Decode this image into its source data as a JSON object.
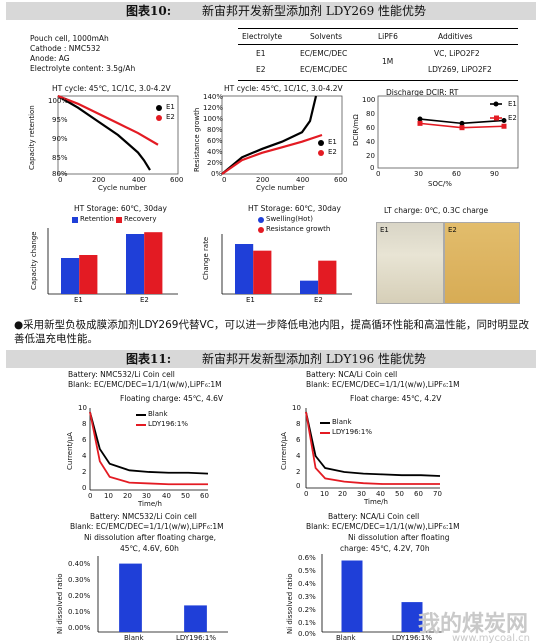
{
  "fig10": {
    "label": "图表10:",
    "title": "新宙邦开发新型添加剂 LDY269 性能优势",
    "cell_info": [
      "Pouch cell, 1000mAh",
      "Cathode : NMC532",
      "Anode: AG",
      "Electrolyte content: 3.5g/Ah"
    ],
    "table": {
      "headers": [
        "Electrolyte",
        "Solvents",
        "LiPF6",
        "Additives"
      ],
      "rows": [
        [
          "E1",
          "EC/EMC/DEC",
          "1M",
          "VC, LiPO2F2"
        ],
        [
          "E2",
          "EC/EMC/DEC",
          "",
          "LDY269, LiPO2F2"
        ]
      ]
    },
    "c1": {
      "title": "HT cycle: 45℃, 1C/1C, 3.0-4.2V",
      "ylabel": "Capacity retention",
      "xlabel": "Cycle number",
      "yticks": [
        "100%",
        "95%",
        "90%",
        "85%",
        "80%"
      ],
      "xticks": [
        "0",
        "200",
        "400",
        "600"
      ],
      "legend": [
        "E1",
        "E2"
      ]
    },
    "c2": {
      "title": "HT cycle: 45℃, 1C/1C, 3.0-4.2V",
      "ylabel": "Resistance growth",
      "xlabel": "Cycle number",
      "yticks": [
        "140%",
        "120%",
        "100%",
        "80%",
        "60%",
        "40%",
        "20%",
        "0%"
      ],
      "xticks": [
        "0",
        "200",
        "400",
        "600"
      ],
      "legend": [
        "E1",
        "E2"
      ]
    },
    "c3": {
      "title": "Discharge DCIR: RT",
      "ylabel": "DCIR/mΩ",
      "xlabel": "SOC/%",
      "yticks": [
        "100",
        "80",
        "60",
        "40",
        "20",
        "0"
      ],
      "xticks": [
        "0",
        "30",
        "60",
        "90"
      ],
      "legend": [
        "E1",
        "E2"
      ]
    },
    "c4": {
      "title": "HT Storage: 60℃, 30day",
      "ylabel": "Capacity change",
      "legend": [
        "Retention",
        "Recovery"
      ],
      "xticks": [
        "E1",
        "E2"
      ]
    },
    "c5": {
      "title": "HT Storage: 60℃, 30day",
      "ylabel": "Change rate",
      "legend": [
        "Swelling(Hot)",
        "Resistance growth"
      ],
      "xticks": [
        "E1",
        "E2"
      ]
    },
    "c6": {
      "title": "LT charge: 0℃, 0.3C charge",
      "labels": [
        "E1",
        "E2"
      ]
    },
    "note": "●采用新型负极成膜添加剂LDY269代替VC，可以进一步降低电池内阻，提高循环性能和高温性能，同时明显改善低温充电性能。"
  },
  "fig11": {
    "label": "图表11:",
    "title": "新宙邦开发新型添加剂 LDY196 性能优势",
    "c7": {
      "info": [
        "Battery: NMC532/Li Coin cell",
        "Blank: EC/EMC/DEC=1/1/1(w/w),LiPF₆:1M"
      ],
      "title": "Floating charge: 45℃, 4.6V",
      "ylabel": "Current/μA",
      "xlabel": "Time/h",
      "yticks": [
        "10",
        "8",
        "6",
        "4",
        "2",
        "0"
      ],
      "xticks": [
        "0",
        "10",
        "20",
        "30",
        "40",
        "50",
        "60"
      ],
      "legend": [
        "Blank",
        "LDY196:1%"
      ]
    },
    "c8": {
      "info": [
        "Battery: NCA/Li Coin cell",
        "Blank: EC/EMC/DEC=1/1/1(w/w),LiPF₆:1M"
      ],
      "title": "Float charge: 45℃, 4.2V",
      "ylabel": "Current/μA",
      "xlabel": "Time/h",
      "yticks": [
        "10",
        "8",
        "6",
        "4",
        "2",
        "0"
      ],
      "xticks": [
        "0",
        "10",
        "20",
        "30",
        "40",
        "50",
        "60",
        "70"
      ],
      "legend": [
        "Blank",
        "LDY196:1%"
      ]
    },
    "c9": {
      "info": [
        "Battery: NMC532/Li Coin cell",
        "Blank: EC/EMC/DEC=1/1/1(w/w),LiPF₆:1M",
        "Ni dissolution after floating charge,",
        "45℃, 4.6V, 60h"
      ],
      "ylabel": "Ni dissolved ratio",
      "yticks": [
        "0.40%",
        "0.30%",
        "0.20%",
        "0.10%",
        "0.00%"
      ],
      "xticks": [
        "Blank",
        "LDY196:1%"
      ]
    },
    "c10": {
      "info": [
        "Battery: NCA/Li Coin cell",
        "Blank: EC/EMC/DEC=1/1/1(w/w),LiPF₆:1M",
        "Ni dissolution after floating",
        "charge: 45℃, 4.2V, 70h"
      ],
      "ylabel": "Ni dissolved ratio",
      "yticks": [
        "0.6%",
        "0.5%",
        "0.4%",
        "0.3%",
        "0.2%",
        "0.1%",
        "0.0%"
      ],
      "xticks": [
        "Blank",
        "LDY196:1%"
      ]
    }
  },
  "watermark": {
    "main": "我的煤炭网",
    "sub": "www.mycoal.cn"
  },
  "colors": {
    "e1": "#000000",
    "e2": "#e31b23",
    "blue": "#1f3fd8",
    "red": "#e31b23"
  },
  "chart_data": [
    {
      "type": "line",
      "title": "HT cycle: 45℃, 1C/1C, 3.0-4.2V",
      "xlabel": "Cycle number",
      "ylabel": "Capacity retention",
      "ylim": [
        0.8,
        1.0
      ],
      "xlim": [
        0,
        600
      ],
      "series": [
        {
          "name": "E1",
          "x": [
            0,
            100,
            200,
            300,
            400,
            430,
            460
          ],
          "y": [
            1.0,
            0.97,
            0.935,
            0.9,
            0.855,
            0.835,
            0.81
          ]
        },
        {
          "name": "E2",
          "x": [
            0,
            100,
            200,
            300,
            400,
            500
          ],
          "y": [
            1.0,
            0.98,
            0.955,
            0.93,
            0.905,
            0.875
          ]
        }
      ]
    },
    {
      "type": "line",
      "title": "HT cycle: 45℃, 1C/1C, 3.0-4.2V",
      "xlabel": "Cycle number",
      "ylabel": "Resistance growth",
      "ylim": [
        0,
        1.4
      ],
      "xlim": [
        0,
        600
      ],
      "series": [
        {
          "name": "E1",
          "x": [
            0,
            100,
            200,
            300,
            400,
            440,
            470
          ],
          "y": [
            0,
            0.3,
            0.45,
            0.58,
            0.75,
            0.95,
            1.4
          ]
        },
        {
          "name": "E2",
          "x": [
            0,
            100,
            200,
            300,
            400,
            500
          ],
          "y": [
            0,
            0.25,
            0.38,
            0.48,
            0.58,
            0.7
          ]
        }
      ]
    },
    {
      "type": "line",
      "title": "Discharge DCIR: RT",
      "xlabel": "SOC/%",
      "ylabel": "DCIR/mΩ",
      "ylim": [
        0,
        100
      ],
      "xlim": [
        0,
        100
      ],
      "series": [
        {
          "name": "E1",
          "x": [
            30,
            60,
            90
          ],
          "y": [
            68,
            62,
            66
          ]
        },
        {
          "name": "E2",
          "x": [
            30,
            60,
            90
          ],
          "y": [
            62,
            56,
            58
          ]
        }
      ]
    },
    {
      "type": "bar",
      "title": "HT Storage: 60℃, 30day",
      "ylabel": "Capacity change",
      "categories": [
        "E1",
        "E2"
      ],
      "series": [
        {
          "name": "Retention",
          "values": [
            0.6,
            1.0
          ]
        },
        {
          "name": "Recovery",
          "values": [
            0.65,
            1.03
          ]
        }
      ]
    },
    {
      "type": "bar",
      "title": "HT Storage: 60℃, 30day",
      "ylabel": "Change rate",
      "categories": [
        "E1",
        "E2"
      ],
      "series": [
        {
          "name": "Swelling(Hot)",
          "values": [
            0.15,
            0.04
          ]
        },
        {
          "name": "Resistance growth",
          "values": [
            0.13,
            0.1
          ]
        }
      ]
    },
    {
      "type": "line",
      "title": "Floating charge: 45℃, 4.6V",
      "xlabel": "Time/h",
      "ylabel": "Current/μA",
      "ylim": [
        0,
        10
      ],
      "xlim": [
        0,
        60
      ],
      "series": [
        {
          "name": "Blank",
          "x": [
            0,
            5,
            10,
            20,
            30,
            40,
            50,
            60
          ],
          "y": [
            9.5,
            5,
            3.2,
            2.4,
            2.2,
            2.1,
            2.1,
            2.0
          ]
        },
        {
          "name": "LDY196:1%",
          "x": [
            0,
            5,
            10,
            20,
            30,
            40,
            50,
            60
          ],
          "y": [
            9.5,
            3.5,
            1.6,
            0.9,
            0.8,
            0.7,
            0.7,
            0.7
          ]
        }
      ]
    },
    {
      "type": "line",
      "title": "Float charge: 45℃, 4.2V",
      "xlabel": "Time/h",
      "ylabel": "Current/μA",
      "ylim": [
        0,
        10
      ],
      "xlim": [
        0,
        70
      ],
      "series": [
        {
          "name": "Blank",
          "x": [
            0,
            5,
            10,
            20,
            30,
            40,
            50,
            60,
            70
          ],
          "y": [
            9.5,
            4,
            2.5,
            2.0,
            1.8,
            1.7,
            1.6,
            1.6,
            1.5
          ]
        },
        {
          "name": "LDY196:1%",
          "x": [
            0,
            5,
            10,
            20,
            30,
            40,
            50,
            60,
            70
          ],
          "y": [
            9.5,
            2.5,
            1.2,
            0.8,
            0.6,
            0.5,
            0.5,
            0.5,
            0.5
          ]
        }
      ]
    },
    {
      "type": "bar",
      "title": "Ni dissolution after floating charge, 45℃, 4.6V, 60h",
      "ylabel": "Ni dissolved ratio",
      "ylim": [
        0,
        0.4
      ],
      "categories": [
        "Blank",
        "LDY196:1%"
      ],
      "values": [
        0.36,
        0.14
      ]
    },
    {
      "type": "bar",
      "title": "Ni dissolution after floating charge: 45℃, 4.2V, 70h",
      "ylabel": "Ni dissolved ratio",
      "ylim": [
        0,
        0.6
      ],
      "categories": [
        "Blank",
        "LDY196:1%"
      ],
      "values": [
        0.55,
        0.23
      ]
    }
  ]
}
